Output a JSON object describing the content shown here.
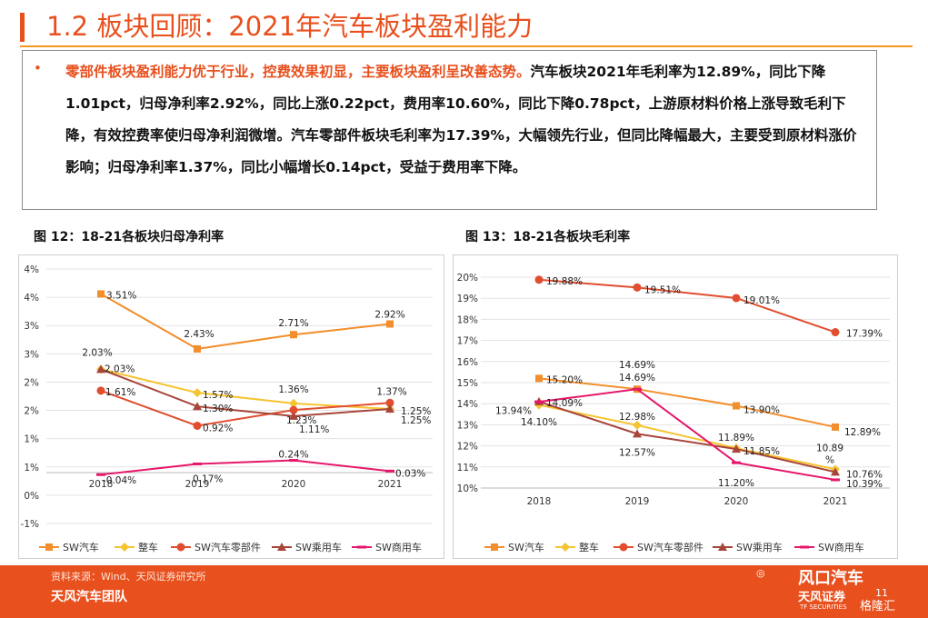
{
  "page": {
    "title": "1.2 板块回顾：2021年汽车板块盈利能力",
    "summary": {
      "highlight": "零部件板块盈利能力优于行业，控费效果初显，主要板块盈利呈改善态势。",
      "body": "汽车板块2021年毛利率为12.89%，同比下降1.01pct，归母净利率2.92%，同比上涨0.22pct，费用率10.60%，同比下降0.78pct，上游原材料价格上涨导致毛利下降，有效控费率使归母净利润微增。汽车零部件板块毛利率为17.39%，大幅领先行业，但同比降幅最大，主要受到原材料涨价影响；归母净利率1.37%，同比小幅增长0.14pct，受益于费用率下降。"
    },
    "source": "资料来源：Wind、天风证券研究所",
    "team": "天风汽车团队",
    "page_number": "11",
    "logo_text": "天风证券",
    "logo_sub": "TF SECURITIES",
    "watermark_1": "风口汽车",
    "watermark_2": "格隆汇"
  },
  "colors": {
    "SW汽车": "#F28E2B",
    "整车": "#F5C431",
    "SW汽车零部件": "#E04E2F",
    "SW乘用车": "#A8453A",
    "SW商用车": "#E5176B",
    "accent": "#E8501E"
  },
  "chart_data": [
    {
      "type": "line",
      "title": "图 12：18-21各板块归母净利率",
      "categories": [
        "2018",
        "2019",
        "2020",
        "2021"
      ],
      "y_tick_labels": [
        "-1%",
        "0%",
        "1%",
        "1%",
        "2%",
        "2%",
        "3%",
        "3%",
        "4%",
        "4%"
      ],
      "ylim": [
        -0.01,
        0.04
      ],
      "legend_position": "bottom",
      "series": [
        {
          "name": "SW汽车",
          "marker": "square",
          "values": [
            0.0351,
            0.0243,
            0.0271,
            0.0292
          ],
          "labels": [
            "3.51%",
            "2.43%",
            "2.71%",
            "2.92%"
          ]
        },
        {
          "name": "整车",
          "marker": "diamond",
          "values": [
            0.0203,
            0.0157,
            0.0136,
            0.0125
          ],
          "labels": [
            "2.03%",
            "1.57%",
            "1.36%",
            "1.25%"
          ]
        },
        {
          "name": "SW汽车零部件",
          "marker": "circle",
          "values": [
            0.0161,
            0.0092,
            0.0123,
            0.0137
          ],
          "labels": [
            "1.61%",
            "0.92%",
            "1.23%",
            "1.37%"
          ]
        },
        {
          "name": "SW乘用车",
          "marker": "triangle",
          "values": [
            0.0203,
            0.013,
            0.0111,
            0.0125
          ],
          "labels": [
            "2.03%",
            "1.30%",
            "1.11%",
            "1.25%"
          ]
        },
        {
          "name": "SW商用车",
          "marker": "dash",
          "values": [
            -0.0004,
            0.0017,
            0.0024,
            0.0003
          ],
          "labels": [
            "-0.04%",
            "0.17%",
            "0.24%",
            "0.03%"
          ]
        }
      ]
    },
    {
      "type": "line",
      "title": "图 13：18-21各板块毛利率",
      "categories": [
        "2018",
        "2019",
        "2020",
        "2021"
      ],
      "y_tick_labels": [
        "10%",
        "11%",
        "12%",
        "13%",
        "14%",
        "15%",
        "16%",
        "17%",
        "18%",
        "19%",
        "20%"
      ],
      "ylim": [
        0.1,
        0.2
      ],
      "legend_position": "bottom",
      "series": [
        {
          "name": "SW汽车",
          "marker": "square",
          "values": [
            0.152,
            0.1469,
            0.139,
            0.1289
          ],
          "labels": [
            "15.20%",
            "14.69%",
            "13.90%",
            "12.89%"
          ]
        },
        {
          "name": "整车",
          "marker": "diamond",
          "values": [
            0.1394,
            0.1298,
            0.1189,
            0.1089
          ],
          "labels": [
            "13.94%",
            "12.98%",
            "11.89%",
            "10.89\n%"
          ]
        },
        {
          "name": "SW汽车零部件",
          "marker": "circle",
          "values": [
            0.1988,
            0.1951,
            0.1901,
            0.1739
          ],
          "labels": [
            "19.88%",
            "19.51%",
            "19.01%",
            "17.39%"
          ]
        },
        {
          "name": "SW乘用车",
          "marker": "triangle",
          "values": [
            0.141,
            0.1257,
            0.1185,
            0.1076
          ],
          "labels": [
            "14.10%",
            "12.57%",
            "11.85%",
            "10.76%"
          ]
        },
        {
          "name": "SW商用车",
          "marker": "dash",
          "values": [
            0.1409,
            0.1469,
            0.112,
            0.1039
          ],
          "labels": [
            "14.09%",
            "14.69%",
            "11.20%",
            "10.39%"
          ]
        }
      ]
    }
  ]
}
